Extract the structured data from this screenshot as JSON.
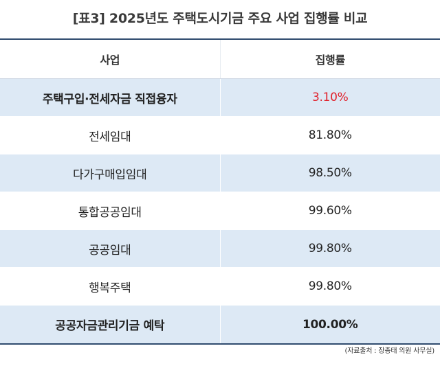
{
  "title": "[표3] 2025년도 주택도시기금 주요 사업 집행률 비교",
  "columns": {
    "name": "사업",
    "rate": "집행률"
  },
  "rows": [
    {
      "name": "주택구입·전세자금 직접융자",
      "rate": "3.10%"
    },
    {
      "name": "전세임대",
      "rate": "81.80%"
    },
    {
      "name": "다가구매입임대",
      "rate": "98.50%"
    },
    {
      "name": "통합공공임대",
      "rate": "99.60%"
    },
    {
      "name": "공공임대",
      "rate": "99.80%"
    },
    {
      "name": "행복주택",
      "rate": "99.80%"
    },
    {
      "name": "공공자금관리기금 예탁",
      "rate": "100.00%"
    }
  ],
  "source": "(자료출처 : 장종태 의원 사무실)",
  "colors": {
    "border": "#2f4b6e",
    "shade": "#dde9f5",
    "highlight": "#e0202a"
  }
}
